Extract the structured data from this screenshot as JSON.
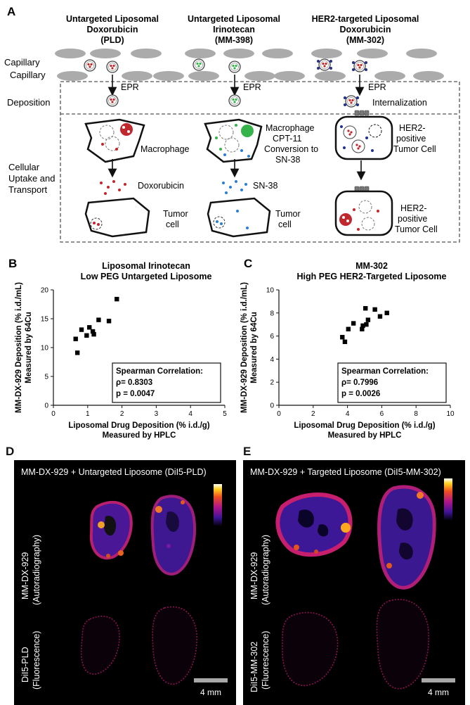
{
  "panelA": {
    "letter": "A",
    "col1": {
      "title": [
        "Untargeted Liposomal",
        "Doxorubicin",
        "(PLD)"
      ],
      "epr": "EPR",
      "cell": "Macrophage",
      "drug": "Doxorubicin",
      "tumor": [
        "Tumor",
        "cell"
      ]
    },
    "col2": {
      "title": [
        "Untargeted Liposomal",
        "Irinotecan",
        "(MM-398)"
      ],
      "epr": "EPR",
      "cell": [
        "Macrophage",
        "CPT-11",
        "Conversion to",
        "SN-38"
      ],
      "drug": "SN-38",
      "tumor": [
        "Tumor",
        "cell"
      ]
    },
    "col3": {
      "title": [
        "HER2-targeted Liposomal",
        "Doxorubicin",
        "(MM-302)"
      ],
      "epr": "EPR",
      "internalization": "Internalization",
      "cell": [
        "HER2-",
        "positive",
        "Tumor Cell"
      ],
      "tumor": [
        "HER2-",
        "positive",
        "Tumor Cell"
      ]
    },
    "rowLabels": {
      "capillary1": "Capillary",
      "capillary2": "Capillary",
      "deposition": "Deposition",
      "uptake": [
        "Cellular",
        "Uptake and",
        "Transport"
      ]
    }
  },
  "chart_data": [
    {
      "type": "scatter",
      "letter": "B",
      "title": [
        "Liposomal Irinotecan",
        "Low PEG Untargeted Liposome"
      ],
      "xlabel": [
        "Liposomal Drug Deposition (% i.d./g)",
        "Measured by HPLC"
      ],
      "ylabel": [
        "MM-DX-929 Deposition (% i.d./mL)",
        "Measured by 64Cu"
      ],
      "xlim": [
        0,
        5
      ],
      "ylim": [
        0,
        20
      ],
      "xticks": [
        "0",
        "1",
        "2",
        "3",
        "4",
        "5"
      ],
      "yticks": [
        "0",
        "5",
        "10",
        "15",
        "20"
      ],
      "points": [
        [
          0.65,
          11.5
        ],
        [
          0.7,
          9.1
        ],
        [
          0.82,
          13.1
        ],
        [
          0.97,
          12.1
        ],
        [
          1.05,
          13.5
        ],
        [
          1.15,
          12.8
        ],
        [
          1.18,
          12.3
        ],
        [
          1.32,
          14.8
        ],
        [
          1.62,
          14.6
        ],
        [
          1.85,
          18.4
        ]
      ],
      "stats": {
        "heading": "Spearman Correlation:",
        "rho": "ρ= 0.8303",
        "p": "p = 0.0047"
      }
    },
    {
      "type": "scatter",
      "letter": "C",
      "title": [
        "MM-302",
        "High PEG HER2-Targeted Liposome"
      ],
      "xlabel": [
        "Liposomal Drug Deposition (% i.d./g)",
        "Measured by HPLC"
      ],
      "ylabel": [
        "MM-DX-929 Deposition (% i.d./mL)",
        "Measured by 64Cu"
      ],
      "xlim": [
        0,
        10
      ],
      "ylim": [
        0,
        10
      ],
      "xticks": [
        "0",
        "2",
        "4",
        "6",
        "8",
        "10"
      ],
      "yticks": [
        "0",
        "2",
        "4",
        "6",
        "8",
        "10"
      ],
      "points": [
        [
          3.7,
          5.9
        ],
        [
          3.85,
          5.5
        ],
        [
          4.05,
          6.6
        ],
        [
          4.35,
          7.1
        ],
        [
          4.85,
          6.6
        ],
        [
          4.9,
          6.9
        ],
        [
          5.05,
          8.4
        ],
        [
          5.1,
          7.0
        ],
        [
          5.2,
          7.4
        ],
        [
          5.6,
          8.3
        ],
        [
          5.9,
          7.7
        ],
        [
          6.3,
          8.0
        ]
      ],
      "stats": {
        "heading": "Spearman Correlation:",
        "rho": "ρ= 0.7996",
        "p": "p = 0.0026"
      }
    }
  ],
  "panelD": {
    "letter": "D",
    "title": "MM-DX-929 + Untargeted Liposome (DiI5-PLD)",
    "topLabel": [
      "MM-DX-929",
      "(Autoradiography)"
    ],
    "bottomLabel": [
      "DiI5-PLD",
      "(Fluorescence)"
    ],
    "scale": "4 mm"
  },
  "panelE": {
    "letter": "E",
    "title": "MM-DX-929 + Targeted Liposome (DiI5-MM-302)",
    "topLabel": [
      "MM-DX-929",
      "(Autoradiography)"
    ],
    "bottomLabel": [
      "DiI5-MM-302",
      "(Fluorescence)"
    ],
    "scale": "4 mm"
  },
  "colors": {
    "red": "#c0282d",
    "green": "#35b24a",
    "blue": "#2b7fd0",
    "navy": "#23308f",
    "gray": "#a8a8a8"
  }
}
